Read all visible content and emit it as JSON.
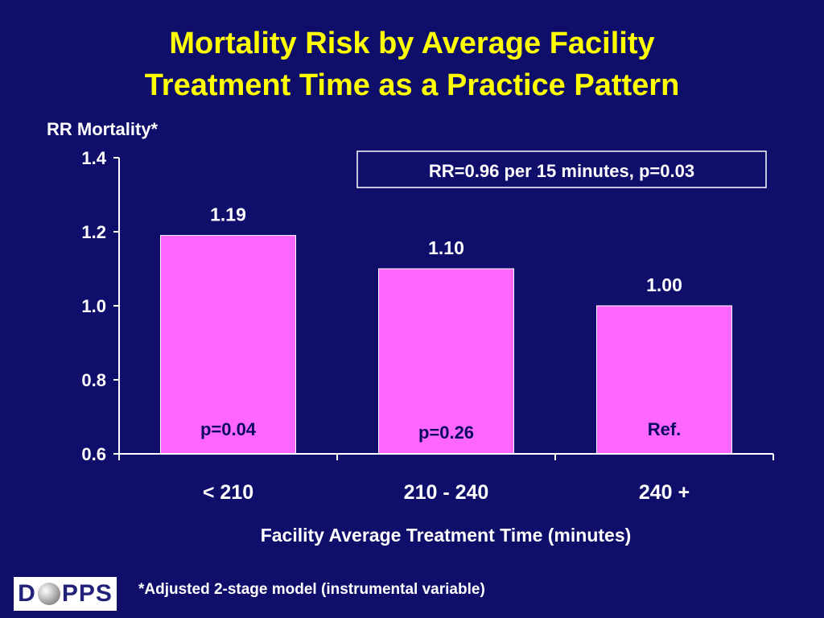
{
  "slide": {
    "title_line1": "Mortality Risk by Average Facility",
    "title_line2": "Treatment Time as a Practice Pattern",
    "footnote": "*Adjusted 2-stage model (instrumental variable)",
    "logo_text": "D PPS"
  },
  "colors": {
    "background": "#0f0f6b",
    "title": "#ffff00",
    "bar_fill": "#ff66ff",
    "text": "#ffffff"
  },
  "chart_data": {
    "type": "bar",
    "ylabel": "RR Mortality*",
    "xlabel": "Facility Average Treatment Time (minutes)",
    "categories": [
      "< 210",
      "210 - 240",
      "240 +"
    ],
    "values": [
      1.19,
      1.1,
      1.0
    ],
    "value_labels": [
      "1.19",
      "1.10",
      "1.00"
    ],
    "p_labels": [
      "p=0.04",
      "p=0.26",
      "Ref."
    ],
    "ylim": [
      0.6,
      1.4
    ],
    "yticks": [
      0.6,
      0.8,
      1.0,
      1.2,
      1.4
    ],
    "ytick_labels": [
      "0.6",
      "0.8",
      "1.0",
      "1.2",
      "1.4"
    ],
    "annotation": "RR=0.96 per 15 minutes, p=0.03",
    "grid": false,
    "legend": "none"
  }
}
